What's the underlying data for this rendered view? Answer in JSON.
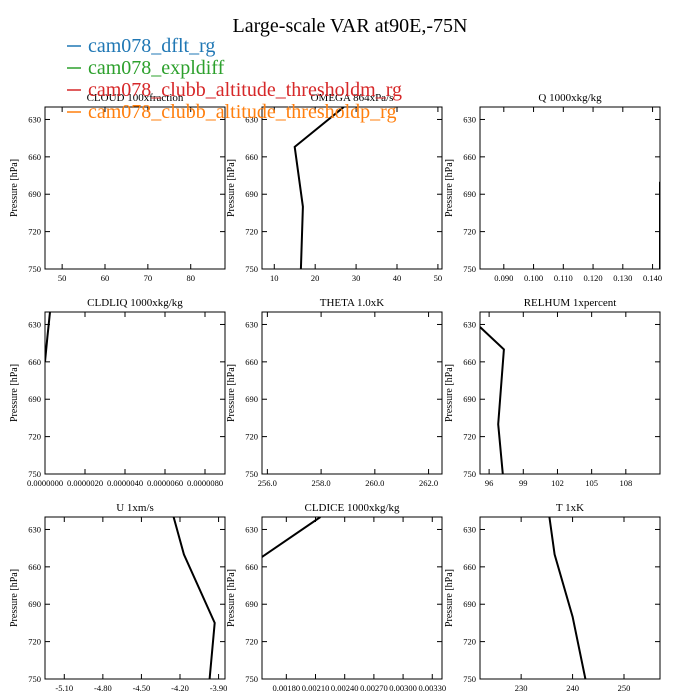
{
  "figure": {
    "title": "Large-scale VAR at90E,-75N",
    "ylabel": "Pressure [hPa]",
    "legend": [
      {
        "name": "cam078_dflt_rg",
        "color": "#1f77b4"
      },
      {
        "name": "cam078_expldiff",
        "color": "#2ca02c"
      },
      {
        "name": "cam078_clubb_altitude_thresholdm_rg",
        "color": "#d62728"
      },
      {
        "name": "cam078_clubb_altitude_thresholdp_rg",
        "color": "#ff7f0e"
      }
    ],
    "line_color": "#000000"
  },
  "chart_data": [
    {
      "type": "line",
      "title": "CLOUD  100xfraction",
      "xlim": [
        46,
        88
      ],
      "ylim": [
        750,
        620
      ],
      "xticks": [
        50,
        60,
        70,
        80
      ],
      "xtick_labels": [
        "50",
        "60",
        "70",
        "80"
      ],
      "yticks": [
        630,
        660,
        690,
        720,
        750
      ],
      "ytick_labels": [
        "630",
        "660",
        "690",
        "720",
        "750"
      ],
      "series": []
    },
    {
      "type": "line",
      "title": "OMEGA  864xPa/s",
      "xlim": [
        7,
        51
      ],
      "ylim": [
        750,
        620
      ],
      "xticks": [
        10,
        20,
        30,
        40,
        50
      ],
      "xtick_labels": [
        "10",
        "20",
        "30",
        "40",
        "50"
      ],
      "yticks": [
        630,
        660,
        690,
        720,
        750
      ],
      "ytick_labels": [
        "630",
        "660",
        "690",
        "720",
        "750"
      ],
      "series": [
        {
          "x": [
            27.0,
            15.0,
            17.0,
            16.5
          ],
          "y": [
            620,
            652,
            700,
            750
          ]
        }
      ]
    },
    {
      "type": "line",
      "title": "Q  1000xkg/kg",
      "xlim": [
        0.082,
        0.1425
      ],
      "ylim": [
        750,
        620
      ],
      "xticks": [
        0.09,
        0.1,
        0.11,
        0.12,
        0.13,
        0.14
      ],
      "xtick_labels": [
        "0.090",
        "0.100",
        "0.110",
        "0.120",
        "0.130",
        "0.140"
      ],
      "yticks": [
        630,
        660,
        690,
        720,
        750
      ],
      "ytick_labels": [
        "630",
        "660",
        "690",
        "720",
        "750"
      ],
      "series": [
        {
          "x": [
            0.1425,
            0.1425
          ],
          "y": [
            680,
            750
          ]
        }
      ]
    },
    {
      "type": "line",
      "title": "CLDLIQ  1000xkg/kg",
      "xlim": [
        0,
        9e-06
      ],
      "ylim": [
        750,
        620
      ],
      "xticks": [
        0,
        2e-06,
        4e-06,
        6e-06,
        8e-06
      ],
      "xtick_labels": [
        "0.0000000",
        "0.0000020",
        "0.0000040",
        "0.0000060",
        "0.0000080"
      ],
      "yticks": [
        630,
        660,
        690,
        720,
        750
      ],
      "ytick_labels": [
        "630",
        "660",
        "690",
        "720",
        "750"
      ],
      "series": [
        {
          "x": [
            2.5e-07,
            1.2e-07,
            0.0
          ],
          "y": [
            620,
            640,
            660
          ]
        }
      ]
    },
    {
      "type": "line",
      "title": "THETA  1.0xK",
      "xlim": [
        255.8,
        262.5
      ],
      "ylim": [
        750,
        620
      ],
      "xticks": [
        256,
        258,
        260,
        262
      ],
      "xtick_labels": [
        "256.0",
        "258.0",
        "260.0",
        "262.0"
      ],
      "yticks": [
        630,
        660,
        690,
        720,
        750
      ],
      "ytick_labels": [
        "630",
        "660",
        "690",
        "720",
        "750"
      ],
      "series": []
    },
    {
      "type": "line",
      "title": "RELHUM  1xpercent",
      "xlim": [
        95.2,
        111
      ],
      "ylim": [
        750,
        620
      ],
      "xticks": [
        96,
        99,
        102,
        105,
        108
      ],
      "xtick_labels": [
        "96",
        "99",
        "102",
        "105",
        "108"
      ],
      "yticks": [
        630,
        660,
        690,
        720,
        750
      ],
      "ytick_labels": [
        "630",
        "660",
        "690",
        "720",
        "750"
      ],
      "series": [
        {
          "x": [
            95.2,
            97.3,
            96.8,
            97.2
          ],
          "y": [
            632,
            650,
            710,
            750
          ]
        }
      ]
    },
    {
      "type": "line",
      "title": "U  1xm/s",
      "xlim": [
        -5.25,
        -3.85
      ],
      "ylim": [
        750,
        620
      ],
      "xticks": [
        -5.1,
        -4.8,
        -4.5,
        -4.2,
        -3.9
      ],
      "xtick_labels": [
        "-5.10",
        "-4.80",
        "-4.50",
        "-4.20",
        "-3.90"
      ],
      "yticks": [
        630,
        660,
        690,
        720,
        750
      ],
      "ytick_labels": [
        "630",
        "660",
        "690",
        "720",
        "750"
      ],
      "series": [
        {
          "x": [
            -4.25,
            -4.17,
            -3.93,
            -3.97
          ],
          "y": [
            620,
            650,
            705,
            750
          ]
        }
      ]
    },
    {
      "type": "line",
      "title": "CLDICE  1000xkg/kg",
      "xlim": [
        0.00155,
        0.0034
      ],
      "ylim": [
        750,
        620
      ],
      "xticks": [
        0.0018,
        0.0021,
        0.0024,
        0.0027,
        0.003,
        0.0033
      ],
      "xtick_labels": [
        "0.00180",
        "0.00210",
        "0.00240",
        "0.00270",
        "0.00300",
        "0.00330"
      ],
      "yticks": [
        630,
        660,
        690,
        720,
        750
      ],
      "ytick_labels": [
        "630",
        "660",
        "690",
        "720",
        "750"
      ],
      "series": [
        {
          "x": [
            0.00215,
            0.00155
          ],
          "y": [
            620,
            652
          ]
        }
      ]
    },
    {
      "type": "line",
      "title": "T  1xK",
      "xlim": [
        222,
        257
      ],
      "ylim": [
        750,
        620
      ],
      "xticks": [
        230,
        240,
        250
      ],
      "xtick_labels": [
        "230",
        "240",
        "250"
      ],
      "yticks": [
        630,
        660,
        690,
        720,
        750
      ],
      "ytick_labels": [
        "630",
        "660",
        "690",
        "720",
        "750"
      ],
      "series": [
        {
          "x": [
            235.5,
            236.5,
            240.0,
            242.5
          ],
          "y": [
            620,
            650,
            700,
            750
          ]
        }
      ]
    }
  ]
}
